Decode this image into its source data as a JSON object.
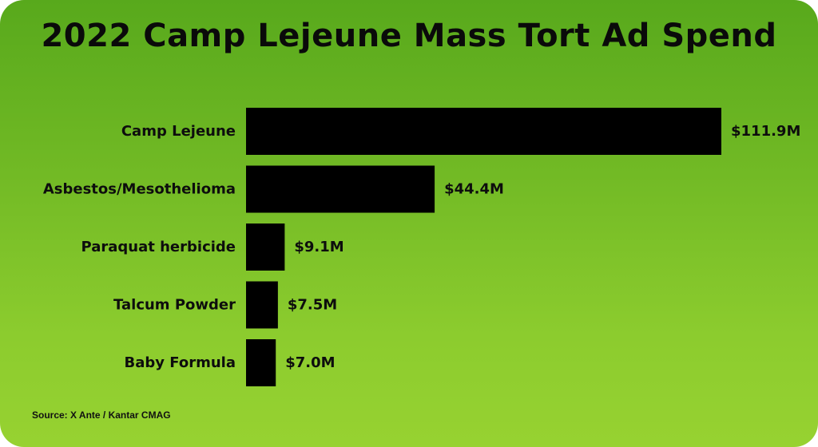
{
  "title": "2022 Camp Lejeune Mass Tort Ad Spend",
  "source": "Source: X Ante / Kantar CMAG",
  "colors": {
    "background_top": "#58a91c",
    "background_bottom": "#97d231",
    "bar": "#000000",
    "text": "#0d0d0d"
  },
  "chart_data": {
    "type": "bar",
    "orientation": "horizontal",
    "title": "2022 Camp Lejeune Mass Tort Ad Spend",
    "categories": [
      "Camp Lejeune",
      "Asbestos/Mesothelioma",
      "Paraquat herbicide",
      "Talcum Powder",
      "Baby Formula"
    ],
    "values": [
      111.9,
      44.4,
      9.1,
      7.5,
      7.0
    ],
    "value_labels": [
      "$111.9M",
      "$44.4M",
      "$9.1M",
      "$7.5M",
      "$7.0M"
    ],
    "unit": "$M",
    "xlim": [
      0,
      111.9
    ],
    "grid": false,
    "legend": "none"
  }
}
